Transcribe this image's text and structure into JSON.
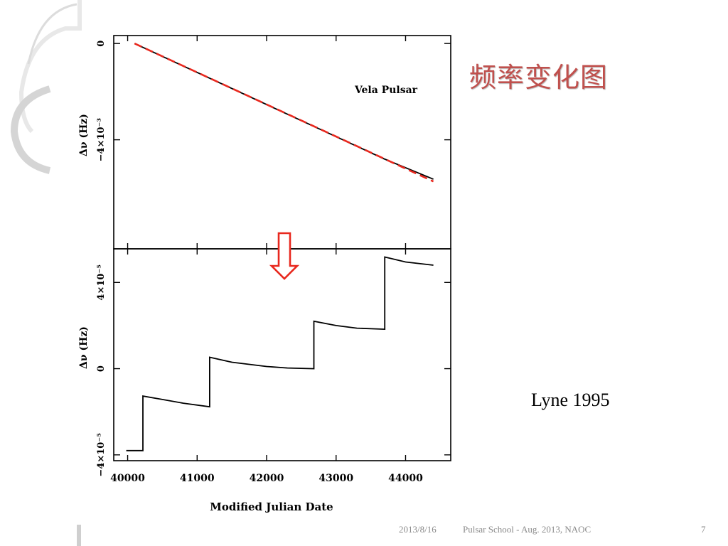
{
  "slide": {
    "title": "频率变化图",
    "citation": "Lyne 1995",
    "accent_color": "#c0504d"
  },
  "footer": {
    "date": "2013/8/16",
    "event": "Pulsar School  - Aug. 2013, NAOC",
    "page_number": "7"
  },
  "chart_data": {
    "type": "line",
    "xlabel": "Modified Julian Date",
    "x_ticks": [
      40000,
      41000,
      42000,
      43000,
      44000
    ],
    "xlim": [
      39800,
      44650
    ],
    "annotation": "Vela Pulsar",
    "arrow_color": "#e8281e",
    "panels": [
      {
        "name": "top",
        "ylabel": "Δν (Hz)",
        "ylim": [
          0.00033,
          -0.00853
        ],
        "y_ticks": [
          0,
          -0.004
        ],
        "y_tick_labels": [
          "0",
          "−4×10⁻³"
        ],
        "series": [
          {
            "style": "solid",
            "color": "#000000",
            "x": [
              40100,
              41170,
              42670,
              43680,
              44400
            ],
            "y": [
              0,
              -0.00143,
              -0.00343,
              -0.00478,
              -0.00564
            ]
          },
          {
            "style": "dashed",
            "color": "#e8281e",
            "x": [
              40100,
              44400
            ],
            "y": [
              0,
              -0.00573
            ]
          }
        ]
      },
      {
        "name": "bottom",
        "ylabel": "Δν (Hz)",
        "ylim": [
          5.56e-05,
          -4.27e-05
        ],
        "y_ticks": [
          4e-05,
          0,
          -4e-05
        ],
        "y_tick_labels": [
          "4×10⁻⁵",
          "0",
          "−4×10⁻⁵"
        ],
        "series": [
          {
            "style": "solid",
            "color": "#000000",
            "x": [
              39980,
              40220,
              40220,
              40500,
              40800,
              41180,
              41180,
              41500,
              42000,
              42300,
              42680,
              42680,
              43000,
              43300,
              43700,
              43700,
              44000,
              44400
            ],
            "y": [
              -3.8e-05,
              -3.8e-05,
              -1.27e-05,
              -1.43e-05,
              -1.6e-05,
              -1.77e-05,
              5.3e-06,
              3e-06,
              1e-06,
              3e-07,
              0.0,
              2.2e-05,
              2e-05,
              1.88e-05,
              1.83e-05,
              5.18e-05,
              4.95e-05,
              4.8e-05
            ]
          }
        ]
      }
    ]
  }
}
